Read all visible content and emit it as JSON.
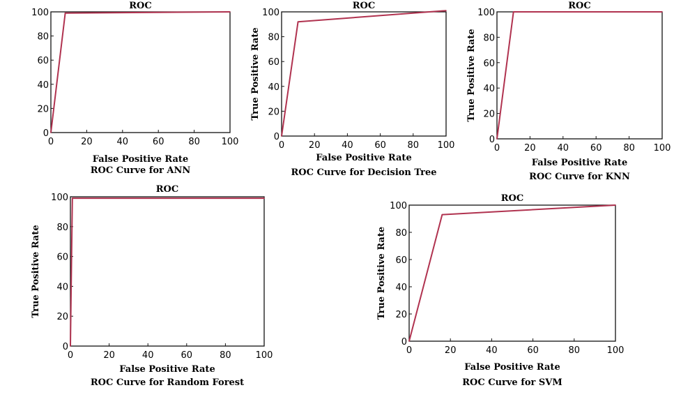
{
  "chart_data": [
    {
      "type": "line",
      "title": "ROC",
      "xlabel": "False Positive Rate",
      "ylabel": "",
      "caption": "ROC Curve for ANN",
      "xlim": [
        0,
        100
      ],
      "ylim": [
        0,
        100
      ],
      "xticks": [
        "0",
        "20",
        "40",
        "60",
        "80",
        "100"
      ],
      "yticks": [
        "0",
        "20",
        "40",
        "60",
        "80",
        "100"
      ],
      "grid": false,
      "color": "#b0324f",
      "x": [
        0,
        8,
        100
      ],
      "y": [
        0,
        99,
        100
      ]
    },
    {
      "type": "line",
      "title": "ROC",
      "xlabel": "False Positive Rate",
      "ylabel": "True Positive Rate",
      "caption": "ROC Curve for Decision Tree",
      "xlim": [
        0,
        100
      ],
      "ylim": [
        0,
        100
      ],
      "xticks": [
        "0",
        "20",
        "40",
        "60",
        "80",
        "100"
      ],
      "yticks": [
        "0",
        "20",
        "40",
        "60",
        "80",
        "100"
      ],
      "grid": false,
      "color": "#b0324f",
      "x": [
        0,
        10,
        100
      ],
      "y": [
        0,
        92,
        101
      ]
    },
    {
      "type": "line",
      "title": "ROC",
      "xlabel": "False Positive Rate",
      "ylabel": "True Positive Rate",
      "caption": "ROC Curve for KNN",
      "xlim": [
        0,
        100
      ],
      "ylim": [
        0,
        100
      ],
      "xticks": [
        "0",
        "20",
        "40",
        "60",
        "80",
        "100"
      ],
      "yticks": [
        "0",
        "20",
        "40",
        "60",
        "80",
        "100"
      ],
      "grid": false,
      "color": "#b0324f",
      "x": [
        0,
        10,
        100
      ],
      "y": [
        0,
        100,
        100
      ]
    },
    {
      "type": "line",
      "title": "ROC",
      "xlabel": "False Positive Rate",
      "ylabel": "True Positive Rate",
      "caption": "ROC Curve for Random Forest",
      "xlim": [
        0,
        100
      ],
      "ylim": [
        0,
        100
      ],
      "xticks": [
        "0",
        "20",
        "40",
        "60",
        "80",
        "100"
      ],
      "yticks": [
        "0",
        "20",
        "40",
        "60",
        "80",
        "100"
      ],
      "grid": false,
      "color": "#b0324f",
      "x": [
        0,
        1,
        100
      ],
      "y": [
        0,
        99,
        99
      ]
    },
    {
      "type": "line",
      "title": "ROC",
      "xlabel": "False Positive Rate",
      "ylabel": "True Positive Rate",
      "caption": "ROC Curve for SVM",
      "xlim": [
        0,
        100
      ],
      "ylim": [
        0,
        100
      ],
      "xticks": [
        "0",
        "20",
        "40",
        "60",
        "80",
        "100"
      ],
      "yticks": [
        "0",
        "20",
        "40",
        "60",
        "80",
        "100"
      ],
      "grid": false,
      "color": "#b0324f",
      "x": [
        0,
        16,
        100
      ],
      "y": [
        0,
        93,
        100
      ]
    }
  ]
}
